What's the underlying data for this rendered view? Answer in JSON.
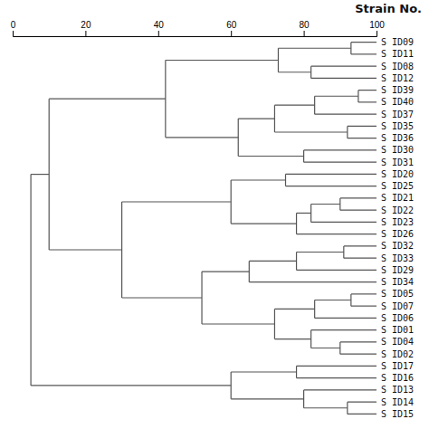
{
  "chart_data": {
    "type": "dendrogram",
    "title": "Strain No.",
    "categories": [
      "S ID09",
      "S ID11",
      "S ID08",
      "S ID12",
      "S ID39",
      "S ID40",
      "S ID37",
      "S ID35",
      "S ID36",
      "S ID30",
      "S ID31",
      "S ID20",
      "S ID25",
      "S ID21",
      "S ID22",
      "S ID23",
      "S ID26",
      "S ID32",
      "S ID33",
      "S ID29",
      "S ID34",
      "S ID05",
      "S ID07",
      "S ID06",
      "S ID01",
      "S ID04",
      "S ID02",
      "S ID17",
      "S ID16",
      "S ID13",
      "S ID14",
      "S ID15"
    ],
    "color": "#555555",
    "xlim": [
      0,
      100
    ],
    "xticks": [
      0,
      20,
      40,
      60,
      80,
      100
    ],
    "tree": {
      "value": 5,
      "children": [
        {
          "value": 10,
          "children": [
            {
              "value": 42,
              "children": [
                {
                  "value": 73,
                  "children": [
                    {
                      "value": 93,
                      "children": [
                        "S ID09",
                        "S ID11"
                      ]
                    },
                    {
                      "value": 82,
                      "children": [
                        "S ID08",
                        "S ID12"
                      ]
                    }
                  ]
                },
                {
                  "value": 62,
                  "children": [
                    {
                      "value": 72,
                      "children": [
                        {
                          "value": 83,
                          "children": [
                            {
                              "value": 95,
                              "children": [
                                "S ID39",
                                "S ID40"
                              ]
                            },
                            "S ID37"
                          ]
                        },
                        {
                          "value": 92,
                          "children": [
                            "S ID35",
                            "S ID36"
                          ]
                        }
                      ]
                    },
                    {
                      "value": 80,
                      "children": [
                        "S ID30",
                        "S ID31"
                      ]
                    }
                  ]
                }
              ]
            },
            {
              "value": 30,
              "children": [
                {
                  "value": 60,
                  "children": [
                    {
                      "value": 75,
                      "children": [
                        "S ID20",
                        "S ID25"
                      ]
                    },
                    {
                      "value": 78,
                      "children": [
                        {
                          "value": 82,
                          "children": [
                            {
                              "value": 90,
                              "children": [
                                "S ID21",
                                "S ID22"
                              ]
                            },
                            "S ID23"
                          ]
                        },
                        "S ID26"
                      ]
                    }
                  ]
                },
                {
                  "value": 52,
                  "children": [
                    {
                      "value": 65,
                      "children": [
                        {
                          "value": 78,
                          "children": [
                            {
                              "value": 91,
                              "children": [
                                "S ID32",
                                "S ID33"
                              ]
                            },
                            "S ID29"
                          ]
                        },
                        "S ID34"
                      ]
                    },
                    {
                      "value": 72,
                      "children": [
                        {
                          "value": 83,
                          "children": [
                            {
                              "value": 93,
                              "children": [
                                "S ID05",
                                "S ID07"
                              ]
                            },
                            "S ID06"
                          ]
                        },
                        {
                          "value": 82,
                          "children": [
                            "S ID01",
                            {
                              "value": 90,
                              "children": [
                                "S ID04",
                                "S ID02"
                              ]
                            }
                          ]
                        }
                      ]
                    }
                  ]
                }
              ]
            }
          ]
        },
        {
          "value": 60,
          "children": [
            {
              "value": 78,
              "children": [
                "S ID17",
                "S ID16"
              ]
            },
            {
              "value": 80,
              "children": [
                "S ID13",
                {
                  "value": 92,
                  "children": [
                    "S ID14",
                    "S ID15"
                  ]
                }
              ]
            }
          ]
        }
      ]
    }
  }
}
